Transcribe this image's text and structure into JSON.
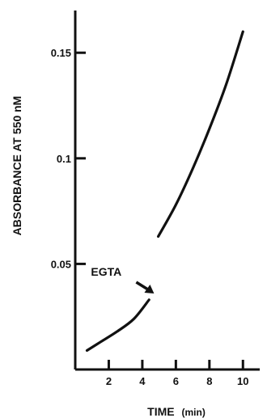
{
  "chart_data": {
    "type": "line",
    "xlabel": "TIME",
    "xlabel_unit": "(min)",
    "ylabel": "ABSORBANCE AT 550 nM",
    "xlim": [
      0,
      11
    ],
    "ylim": [
      0,
      0.17
    ],
    "x_ticks": [
      2,
      4,
      6,
      8,
      10
    ],
    "y_ticks": [
      0.05,
      0.1,
      0.15
    ],
    "y_tick_labels": [
      "0.05",
      "0.1",
      "0.15"
    ],
    "series": [
      {
        "segment": "before-EGTA",
        "x": [
          0.7,
          1.5,
          2.5,
          3.5,
          4.4
        ],
        "y": [
          0.009,
          0.013,
          0.018,
          0.024,
          0.033
        ]
      },
      {
        "segment": "after-EGTA",
        "x": [
          4.95,
          6.0,
          7.0,
          8.0,
          9.0,
          10.0
        ],
        "y": [
          0.063,
          0.078,
          0.095,
          0.114,
          0.135,
          0.16
        ]
      }
    ],
    "annotations": [
      {
        "text": "EGTA",
        "x": 4.7,
        "y": 0.036
      }
    ],
    "grid": false,
    "legend": "none"
  }
}
